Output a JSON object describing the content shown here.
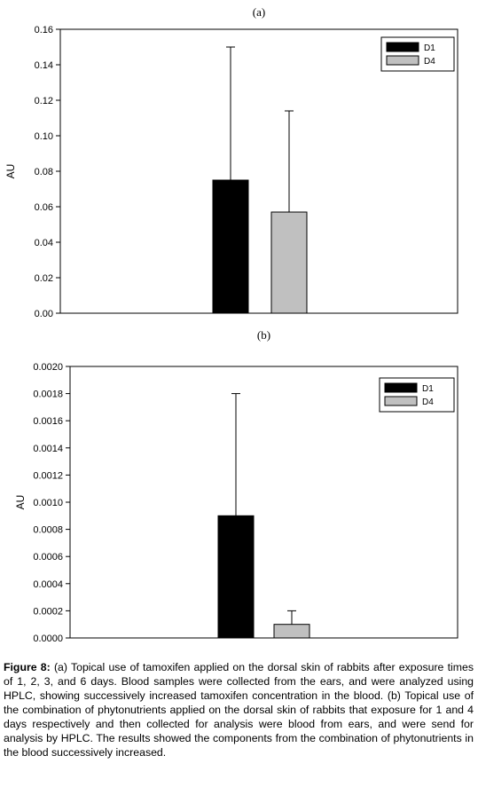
{
  "chart_data": [
    {
      "type": "bar",
      "panel_label": "(a)",
      "ylabel": "AU",
      "ylim": [
        0,
        0.16
      ],
      "yticks": [
        "0.00",
        "0.02",
        "0.04",
        "0.06",
        "0.08",
        "0.10",
        "0.12",
        "0.14",
        "0.16"
      ],
      "grid": false,
      "legend_position": "top-right",
      "series": [
        {
          "name": "D1",
          "color": "#000000",
          "value": 0.075,
          "error": 0.075
        },
        {
          "name": "D4",
          "color": "#c0c0c0",
          "value": 0.057,
          "error": 0.057
        }
      ]
    },
    {
      "type": "bar",
      "panel_label": "(b)",
      "ylabel": "AU",
      "ylim": [
        0,
        0.002
      ],
      "yticks": [
        "0.0000",
        "0.0002",
        "0.0004",
        "0.0006",
        "0.0008",
        "0.0010",
        "0.0012",
        "0.0014",
        "0.0016",
        "0.0018",
        "0.0020"
      ],
      "grid": false,
      "legend_position": "top-right",
      "series": [
        {
          "name": "D1",
          "color": "#000000",
          "value": 0.0009,
          "error": 0.0009
        },
        {
          "name": "D4",
          "color": "#c0c0c0",
          "value": 0.0001,
          "error": 0.0001
        }
      ]
    }
  ],
  "caption": {
    "label": "Figure 8:",
    "text": " (a) Topical use of tamoxifen applied on the dorsal skin of rabbits after exposure times of 1, 2, 3, and 6 days. Blood samples were collected from the ears, and were analyzed using HPLC, showing successively increased tamoxifen concentration in the blood. (b) Topical use of the combination of phytonutrients applied on the dorsal skin of rabbits that exposure for 1 and 4 days respectively and then collected for analysis were blood from ears, and were send for analysis by HPLC. The results showed the components from the combination of phytonutrients in the blood successively increased."
  }
}
